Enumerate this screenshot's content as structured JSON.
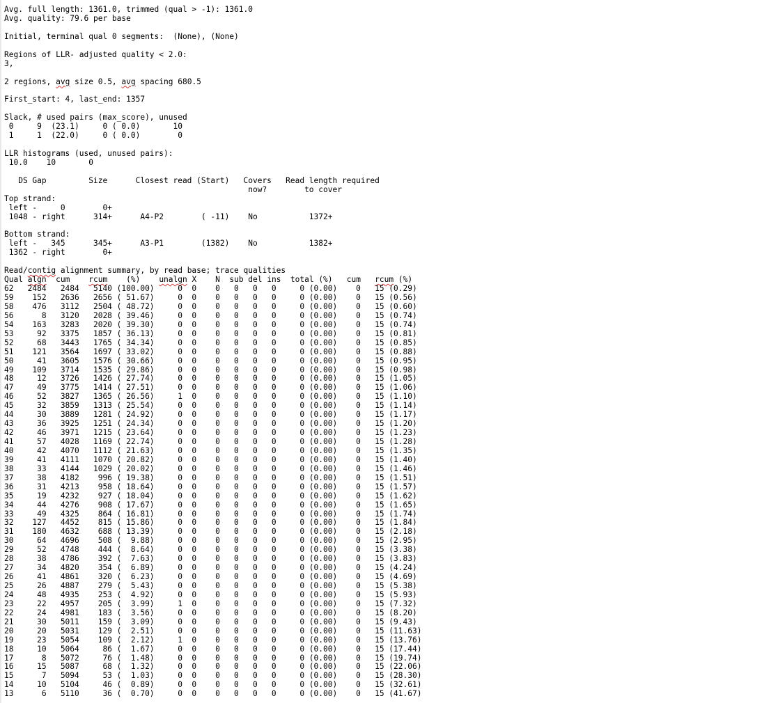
{
  "document": {
    "lines": [
      "Avg. full length: 1361.0, trimmed (qual > -1): 1361.0",
      "Avg. quality: 79.6 per base",
      "",
      "Initial, terminal qual 0 segments:  (None), (None)",
      "",
      "Regions of LLR- adjusted quality < 2.0:",
      "3,",
      "",
      "2 regions, avg size 0.5, avg spacing 680.5",
      "",
      "First_start: 4, last_end: 1357",
      "",
      "Slack, # used pairs (max_score), unused",
      " 0     9  (23.1)     0 ( 0.0)       10",
      " 1     1  (22.0)     0 ( 0.0)        0",
      "",
      "LLR histograms (used, unused pairs):",
      " 10.0    10       0",
      "",
      "   DS Gap         Size      Closest read (Start)   Covers   Read length required",
      "                                                    now?        to cover",
      "Top strand:",
      " left -     0        0+",
      " 1048 - right      314+      A4-P2        ( -11)    No           1372+",
      "",
      "Bottom strand:",
      " left -   345      345+      A3-P1        (1382)    No           1382+",
      " 1362 - right        0+",
      "",
      "Read/contig alignment summary, by read base; trace qualities",
      "Qual algn  cum    rcum    (%)    unalgn X    N  sub del ins  total (%)   cum   rcum (%)",
      "62   2484   2484   5140 (100.00)     0  0    0   0   0   0     0 (0.00)    0   15 (0.29)",
      "59    152   2636   2656 ( 51.67)     0  0    0   0   0   0     0 (0.00)    0   15 (0.56)",
      "58    476   3112   2504 ( 48.72)     0  0    0   0   0   0     0 (0.00)    0   15 (0.60)",
      "56      8   3120   2028 ( 39.46)     0  0    0   0   0   0     0 (0.00)    0   15 (0.74)",
      "54    163   3283   2020 ( 39.30)     0  0    0   0   0   0     0 (0.00)    0   15 (0.74)",
      "53     92   3375   1857 ( 36.13)     0  0    0   0   0   0     0 (0.00)    0   15 (0.81)",
      "52     68   3443   1765 ( 34.34)     0  0    0   0   0   0     0 (0.00)    0   15 (0.85)",
      "51    121   3564   1697 ( 33.02)     0  0    0   0   0   0     0 (0.00)    0   15 (0.88)",
      "50     41   3605   1576 ( 30.66)     0  0    0   0   0   0     0 (0.00)    0   15 (0.95)",
      "49    109   3714   1535 ( 29.86)     0  0    0   0   0   0     0 (0.00)    0   15 (0.98)",
      "48     12   3726   1426 ( 27.74)     0  0    0   0   0   0     0 (0.00)    0   15 (1.05)",
      "47     49   3775   1414 ( 27.51)     0  0    0   0   0   0     0 (0.00)    0   15 (1.06)",
      "46     52   3827   1365 ( 26.56)     1  0    0   0   0   0     0 (0.00)    0   15 (1.10)",
      "45     32   3859   1313 ( 25.54)     0  0    0   0   0   0     0 (0.00)    0   15 (1.14)",
      "44     30   3889   1281 ( 24.92)     0  0    0   0   0   0     0 (0.00)    0   15 (1.17)",
      "43     36   3925   1251 ( 24.34)     0  0    0   0   0   0     0 (0.00)    0   15 (1.20)",
      "42     46   3971   1215 ( 23.64)     0  0    0   0   0   0     0 (0.00)    0   15 (1.23)",
      "41     57   4028   1169 ( 22.74)     0  0    0   0   0   0     0 (0.00)    0   15 (1.28)",
      "40     42   4070   1112 ( 21.63)     0  0    0   0   0   0     0 (0.00)    0   15 (1.35)",
      "39     41   4111   1070 ( 20.82)     0  0    0   0   0   0     0 (0.00)    0   15 (1.40)",
      "38     33   4144   1029 ( 20.02)     0  0    0   0   0   0     0 (0.00)    0   15 (1.46)",
      "37     38   4182    996 ( 19.38)     0  0    0   0   0   0     0 (0.00)    0   15 (1.51)",
      "36     31   4213    958 ( 18.64)     0  0    0   0   0   0     0 (0.00)    0   15 (1.57)",
      "35     19   4232    927 ( 18.04)     0  0    0   0   0   0     0 (0.00)    0   15 (1.62)",
      "34     44   4276    908 ( 17.67)     0  0    0   0   0   0     0 (0.00)    0   15 (1.65)",
      "33     49   4325    864 ( 16.81)     0  0    0   0   0   0     0 (0.00)    0   15 (1.74)",
      "32    127   4452    815 ( 15.86)     0  0    0   0   0   0     0 (0.00)    0   15 (1.84)",
      "31    180   4632    688 ( 13.39)     0  0    0   0   0   0     0 (0.00)    0   15 (2.18)",
      "30     64   4696    508 (  9.88)     0  0    0   0   0   0     0 (0.00)    0   15 (2.95)",
      "29     52   4748    444 (  8.64)     0  0    0   0   0   0     0 (0.00)    0   15 (3.38)",
      "28     38   4786    392 (  7.63)     0  0    0   0   0   0     0 (0.00)    0   15 (3.83)",
      "27     34   4820    354 (  6.89)     0  0    0   0   0   0     0 (0.00)    0   15 (4.24)",
      "26     41   4861    320 (  6.23)     0  0    0   0   0   0     0 (0.00)    0   15 (4.69)",
      "25     26   4887    279 (  5.43)     0  0    0   0   0   0     0 (0.00)    0   15 (5.38)",
      "24     48   4935    253 (  4.92)     0  0    0   0   0   0     0 (0.00)    0   15 (5.93)",
      "23     22   4957    205 (  3.99)     1  0    0   0   0   0     0 (0.00)    0   15 (7.32)",
      "22     24   4981    183 (  3.56)     0  0    0   0   0   0     0 (0.00)    0   15 (8.20)",
      "21     30   5011    159 (  3.09)     0  0    0   0   0   0     0 (0.00)    0   15 (9.43)",
      "20     20   5031    129 (  2.51)     0  0    0   0   0   0     0 (0.00)    0   15 (11.63)",
      "19     23   5054    109 (  2.12)     1  0    0   0   0   0     0 (0.00)    0   15 (13.76)",
      "18     10   5064     86 (  1.67)     0  0    0   0   0   0     0 (0.00)    0   15 (17.44)",
      "17      8   5072     76 (  1.48)     0  0    0   0   0   0     0 (0.00)    0   15 (19.74)",
      "16     15   5087     68 (  1.32)     0  0    0   0   0   0     0 (0.00)    0   15 (22.06)",
      "15      7   5094     53 (  1.03)     0  0    0   0   0   0     0 (0.00)    0   15 (28.30)",
      "14     10   5104     46 (  0.89)     0  0    0   0   0   0     0 (0.00)    0   15 (32.61)",
      "13      6   5110     36 (  0.70)     0  0    0   0   0   0     0 (0.00)    0   15 (41.67)"
    ],
    "spellcheck_words": [
      "avg",
      "contig",
      "algn",
      "rcum",
      "unalgn"
    ]
  }
}
